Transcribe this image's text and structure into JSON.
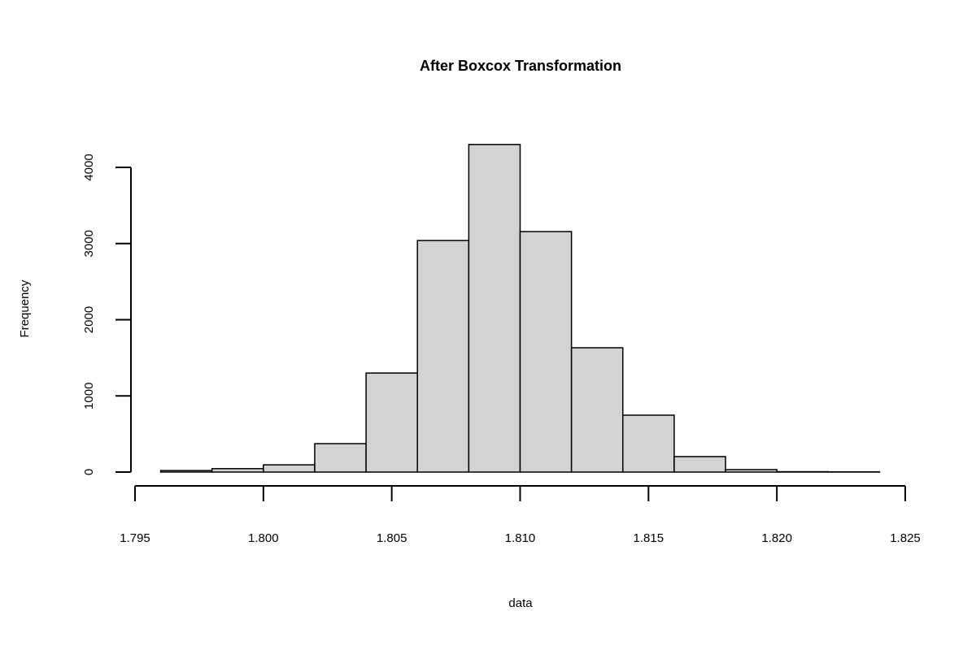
{
  "chart_data": {
    "type": "histogram",
    "title": "After Boxcox Transformation",
    "x_label": "data",
    "y_label": "Frequency",
    "bins": [
      1.796,
      1.798,
      1.8,
      1.802,
      1.804,
      1.806,
      1.808,
      1.81,
      1.812,
      1.814,
      1.816,
      1.818,
      1.82,
      1.822,
      1.824
    ],
    "counts": [
      20,
      45,
      95,
      373,
      1300,
      3040,
      4300,
      3157,
      1632,
      747,
      203,
      32,
      5,
      3
    ],
    "color": "#d3d3d3",
    "xlim": [
      1.795,
      1.825
    ],
    "xticks": [
      1.795,
      {
        "value": 1.8,
        "label": "1.800"
      },
      1.805,
      {
        "value": 1.81,
        "label": "1.810"
      },
      1.815,
      {
        "value": 1.82,
        "label": "1.820"
      },
      1.825
    ],
    "ylim": [
      0,
      4000
    ],
    "yticks": [
      0,
      1000,
      2000,
      3000,
      4000
    ]
  }
}
